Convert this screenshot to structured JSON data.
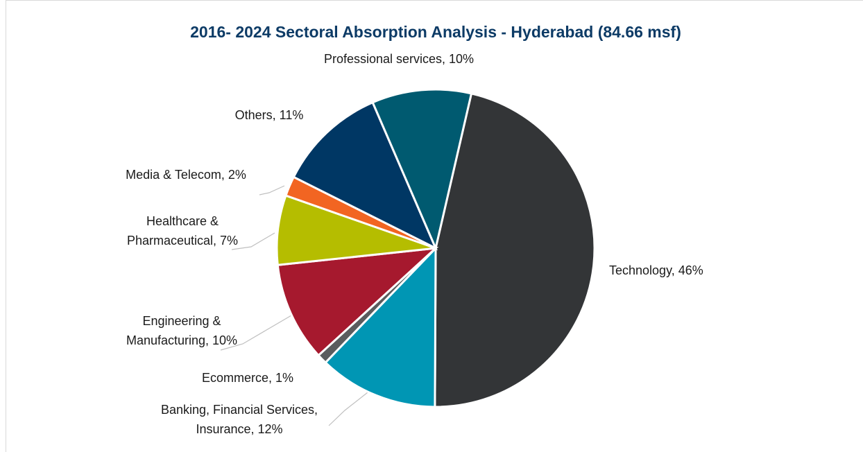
{
  "chart_data": {
    "type": "pie",
    "title": "2016- 2024 Sectoral Absorption Analysis - Hyderabad (84.66 msf)",
    "labels": [
      [
        "Technology, 46%"
      ],
      [
        "Banking, Financial Services,",
        "Insurance, 12%"
      ],
      [
        "Ecommerce, 1%"
      ],
      [
        "Engineering &",
        "Manufacturing, 10%"
      ],
      [
        "Healthcare &",
        "Pharmaceutical, 7%"
      ],
      [
        "Media & Telecom, 2%"
      ],
      [
        "Others, 11%"
      ],
      [
        "Professional services, 10%"
      ]
    ],
    "values": [
      46,
      12,
      1,
      10,
      7,
      2,
      11,
      10
    ],
    "colors": [
      "#333537",
      "#0096b4",
      "#5a5c5e",
      "#a6192e",
      "#b5bd00",
      "#f26522",
      "#003764",
      "#005a70"
    ]
  }
}
